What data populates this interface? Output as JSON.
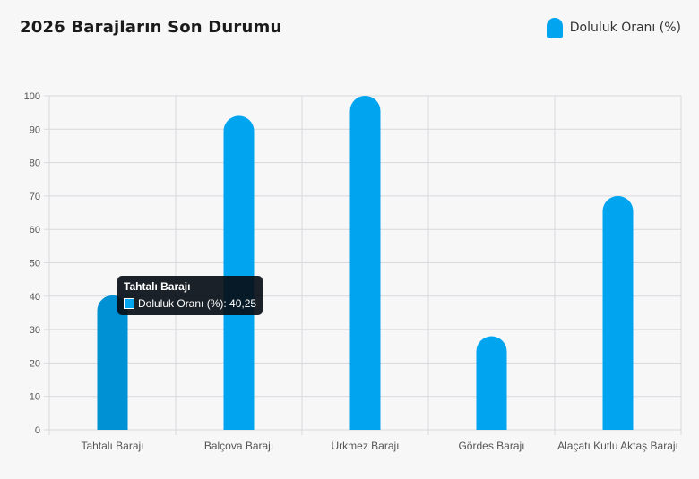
{
  "title": "2026 Barajların Son Durumu",
  "legend": {
    "label": "Doluluk Oranı (%)"
  },
  "tooltip": {
    "title": "Tahtalı Barajı",
    "label": "Doluluk Oranı (%): 40,25"
  },
  "colors": {
    "bar": "#00a4ef",
    "bar_active": "#0090d4",
    "grid": "#d9d9dd",
    "axis_text": "#555555"
  },
  "chart_data": {
    "type": "bar",
    "categories": [
      "Tahtalı Barajı",
      "Balçova Barajı",
      "Ürkmez Barajı",
      "Gördes Barajı",
      "Alaçatı Kutlu Aktaş Barajı"
    ],
    "series": [
      {
        "name": "Doluluk Oranı (%)",
        "values": [
          40.25,
          94,
          100,
          28,
          70
        ]
      }
    ],
    "ylim": [
      0,
      100
    ],
    "yticks": [
      0,
      10,
      20,
      30,
      40,
      50,
      60,
      70,
      80,
      90,
      100
    ],
    "grid": true,
    "legend_position": "top-right",
    "active_index": 0
  }
}
